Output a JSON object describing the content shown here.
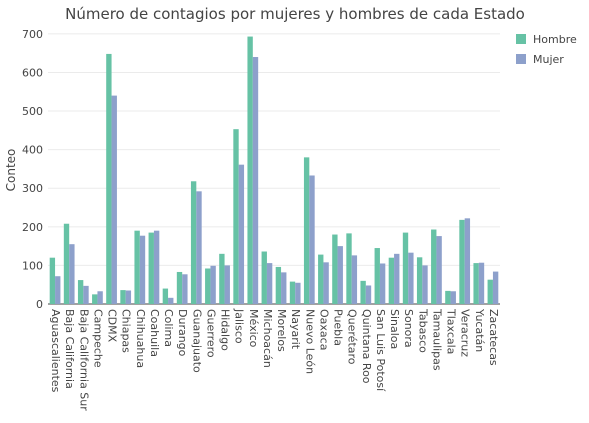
{
  "chart_data": {
    "type": "bar",
    "title": "Número de contagios por mujeres y hombres de cada Estado",
    "xlabel": "",
    "ylabel": "Conteo",
    "ylim": [
      0,
      710
    ],
    "yticks": [
      0,
      100,
      200,
      300,
      400,
      500,
      600,
      700
    ],
    "grid": true,
    "legend_position": "top-right",
    "categories": [
      "Aguascalientes",
      "Baja California",
      "Baja California Sur",
      "Campeche",
      "CDMX",
      "Chiapas",
      "Chihuahua",
      "Coahuila",
      "Colima",
      "Durango",
      "Guanajuato",
      "Guerrero",
      "Hidalgo",
      "Jalisco",
      "México",
      "Michoacán",
      "Morelos",
      "Nayarit",
      "Nuevo León",
      "Oaxaca",
      "Puebla",
      "Querétaro",
      "Quintana Roo",
      "San Luis Potosí",
      "Sinaloa",
      "Sonora",
      "Tabasco",
      "Tamaulipas",
      "Tlaxcala",
      "Veracruz",
      "Yucatán",
      "Zacatecas"
    ],
    "series": [
      {
        "name": "Hombre",
        "color": "#66c2a5",
        "values": [
          120,
          208,
          62,
          25,
          648,
          36,
          190,
          185,
          40,
          83,
          318,
          92,
          130,
          453,
          693,
          136,
          96,
          58,
          380,
          128,
          180,
          183,
          60,
          145,
          120,
          185,
          121,
          193,
          34,
          218,
          106,
          63
        ]
      },
      {
        "name": "Mujer",
        "color": "#8da0cb",
        "values": [
          72,
          155,
          47,
          33,
          540,
          35,
          177,
          190,
          16,
          77,
          292,
          99,
          100,
          361,
          640,
          106,
          82,
          55,
          333,
          108,
          150,
          126,
          48,
          105,
          130,
          133,
          100,
          176,
          33,
          222,
          107,
          84
        ]
      }
    ]
  }
}
